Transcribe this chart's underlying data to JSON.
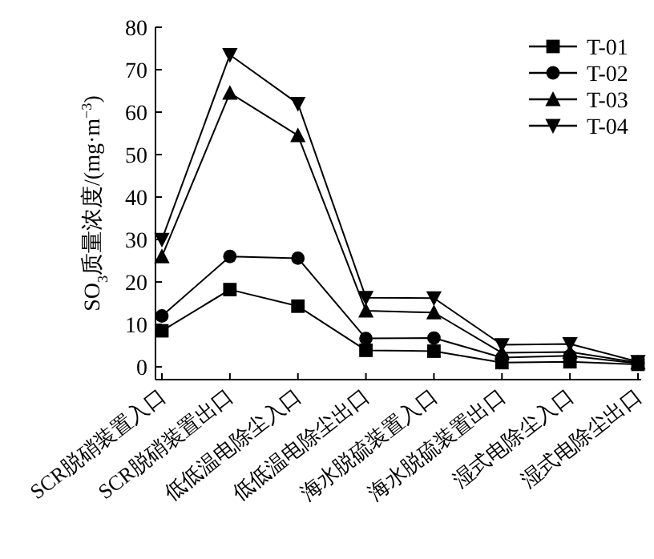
{
  "chart_data": {
    "type": "line",
    "ylabel": "SO$_{3}$质量浓度/(mg·m$^{−3}$)",
    "categories": [
      "SCR脱硝装置入口",
      "SCR脱硝装置出口",
      "低低温电除尘入口",
      "低低温电除尘出口",
      "海水脱硫装置入口",
      "海水脱硫装置出口",
      "湿式电除尘入口",
      "湿式电除尘出口"
    ],
    "series": [
      {
        "name": "T-01",
        "color": "#000000",
        "marker": "square",
        "values": [
          8.5,
          18.2,
          14.3,
          3.9,
          3.7,
          1.0,
          1.2,
          0.6
        ]
      },
      {
        "name": "T-02",
        "color": "#000000",
        "marker": "circle",
        "values": [
          12,
          26,
          25.6,
          6.7,
          6.8,
          2.2,
          2.6,
          0.8
        ]
      },
      {
        "name": "T-03",
        "color": "#000000",
        "marker": "triangle",
        "values": [
          26,
          64.5,
          54.5,
          13.2,
          12.8,
          3.3,
          3.5,
          1.0
        ]
      },
      {
        "name": "T-04",
        "color": "#000000",
        "marker": "triangle_down",
        "values": [
          30,
          73.5,
          62,
          16.3,
          16.2,
          5.2,
          5.4,
          1.2
        ]
      }
    ],
    "ylim": [
      -3,
      80
    ],
    "yticks": [
      0,
      10,
      20,
      30,
      40,
      50,
      60,
      70,
      80
    ],
    "grid": false,
    "legend": "top right",
    "line_style": "solid"
  }
}
